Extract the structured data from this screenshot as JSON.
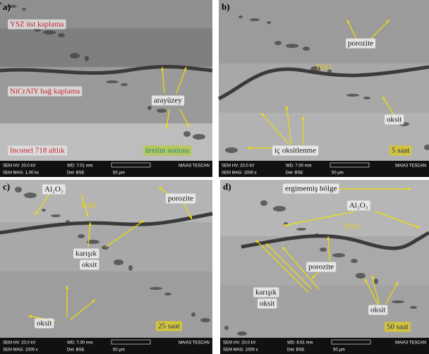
{
  "panels": [
    {
      "letter": "a)",
      "labels": [
        "YSZ üst kaplama",
        "NiCrAlY bağ kaplama",
        "arayüzey",
        "Inconel 718 altlık",
        "üretim sonrası"
      ],
      "info": {
        "hv": "SEM HV: 20.0 kV",
        "wd": "WD: 7.01 mm",
        "maker": "MAIA3 TESCAN",
        "mag": "SEM MAG: 1.00 kx",
        "det": "Det: BSE",
        "scale": "50 μm"
      }
    },
    {
      "letter": "b)",
      "labels": [
        "porozite",
        "TGO",
        "oksit",
        "iç oksitlenme",
        "5 saat"
      ],
      "info": {
        "hv": "SEM HV: 20.0 kV",
        "wd": "WD: 7.00 mm",
        "maker": "MAIA3 TESCAN",
        "mag": "SEM MAG: 1000 x",
        "det": "Det: BSE",
        "scale": "50 μm"
      }
    },
    {
      "letter": "c)",
      "labels": [
        "Al₂O₃",
        "TGO",
        "porozite",
        "karışık",
        "oksit",
        "oksit",
        "25 saat"
      ],
      "info": {
        "hv": "SEM HV: 20.0 kV",
        "wd": "WD: 7.00 mm",
        "maker": "MAIA3 TESCAN",
        "mag": "SEM MAG: 1000 x",
        "det": "Det: BSE",
        "scale": "50 μm"
      }
    },
    {
      "letter": "d)",
      "labels": [
        "ergimemiş bölge",
        "Al₂O₃",
        "TGO",
        "porozite",
        "karışık",
        "oksit",
        "oksit",
        "50 saat"
      ],
      "info": {
        "hv": "SEM HV: 20.0 kV",
        "wd": "WD: 6.61 mm",
        "maker": "MAIA3 TESCAN",
        "mag": "SEM MAG: 1000 x",
        "det": "Det: BSE",
        "scale": "50 μm"
      }
    }
  ]
}
